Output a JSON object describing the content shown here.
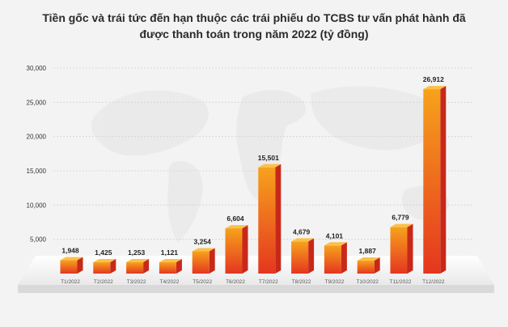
{
  "chart_data": {
    "type": "bar",
    "title_line1": "Tiền gốc và trái tức đến hạn thuộc các trái phiếu do TCBS tư vấn phát hành đã",
    "title_line2": "được thanh toán trong năm 2022 (tỷ đồng)",
    "categories": [
      "T1/2022",
      "T2/2022",
      "T3/2022",
      "T4/2022",
      "T5/2022",
      "T6/2022",
      "T7/2022",
      "T8/2022",
      "T9/2022",
      "T10/2022",
      "T11/2022",
      "T12/2022"
    ],
    "values": [
      1948,
      1425,
      1253,
      1121,
      3254,
      6604,
      15501,
      4679,
      4101,
      1887,
      6779,
      26912
    ],
    "value_labels": [
      "1,948",
      "1,425",
      "1,253",
      "1,121",
      "3,254",
      "6,604",
      "15,501",
      "4,679",
      "4,101",
      "1,887",
      "6,779",
      "26,912"
    ],
    "y_ticks": [
      5000,
      10000,
      15000,
      20000,
      25000,
      30000
    ],
    "y_tick_labels": [
      "5,000",
      "10,000",
      "15,000",
      "20,000",
      "25,000",
      "30,000"
    ],
    "ylim": [
      0,
      30000
    ],
    "grid": true,
    "legend": "none",
    "colors": {
      "bar_front_top": "#f7a21c",
      "bar_front_bottom": "#e4361f",
      "bar_side": "#c8281a",
      "bar_top": "#fbc04a",
      "gridline": "#d2d2d2",
      "platform": "#ffffff",
      "background": "#f3f3f3"
    }
  }
}
